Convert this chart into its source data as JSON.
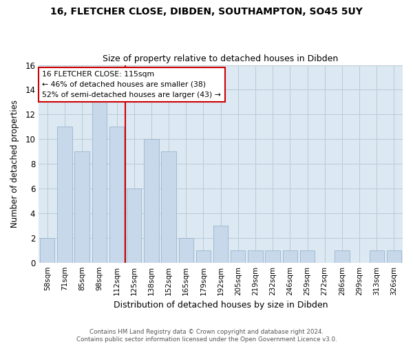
{
  "title": "16, FLETCHER CLOSE, DIBDEN, SOUTHAMPTON, SO45 5UY",
  "subtitle": "Size of property relative to detached houses in Dibden",
  "xlabel": "Distribution of detached houses by size in Dibden",
  "ylabel": "Number of detached properties",
  "categories": [
    "58sqm",
    "71sqm",
    "85sqm",
    "98sqm",
    "112sqm",
    "125sqm",
    "138sqm",
    "152sqm",
    "165sqm",
    "179sqm",
    "192sqm",
    "205sqm",
    "219sqm",
    "232sqm",
    "246sqm",
    "259sqm",
    "272sqm",
    "286sqm",
    "299sqm",
    "313sqm",
    "326sqm"
  ],
  "values": [
    2,
    11,
    9,
    13,
    11,
    6,
    10,
    9,
    2,
    1,
    3,
    1,
    1,
    1,
    1,
    1,
    0,
    1,
    0,
    1,
    1
  ],
  "bar_color": "#c8d8eb",
  "bar_edgecolor": "#9ab4cc",
  "vline_x": 4.5,
  "annotation_text_line1": "16 FLETCHER CLOSE: 115sqm",
  "annotation_text_line2": "← 46% of detached houses are smaller (38)",
  "annotation_text_line3": "52% of semi-detached houses are larger (43) →",
  "annotation_box_facecolor": "#ffffff",
  "annotation_box_edgecolor": "#cc0000",
  "vline_color": "#cc0000",
  "ylim": [
    0,
    16
  ],
  "yticks": [
    0,
    2,
    4,
    6,
    8,
    10,
    12,
    14,
    16
  ],
  "grid_color": "#b8ccd8",
  "plot_bg_color": "#dce8f2",
  "fig_bg_color": "#ffffff",
  "title_fontsize": 10,
  "subtitle_fontsize": 9,
  "ylabel_fontsize": 8.5,
  "xlabel_fontsize": 9,
  "tick_fontsize": 7.5,
  "annotation_fontsize": 7.8,
  "footer_line1": "Contains HM Land Registry data © Crown copyright and database right 2024.",
  "footer_line2": "Contains public sector information licensed under the Open Government Licence v3.0."
}
